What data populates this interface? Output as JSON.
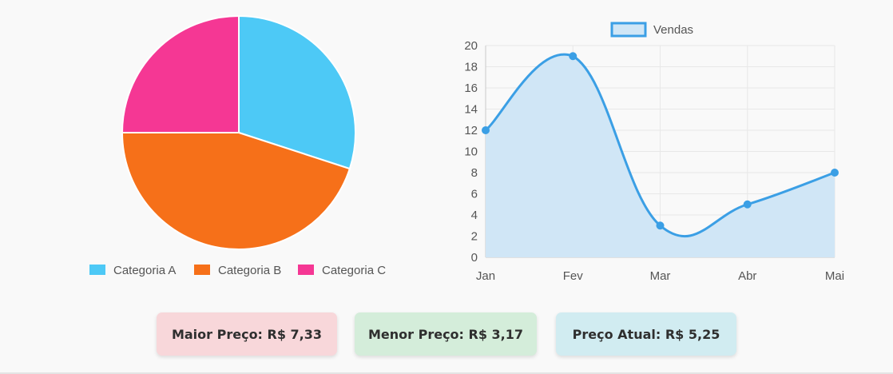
{
  "colors": {
    "category_a": "#4dc9f6",
    "category_b": "#f67019",
    "category_c": "#f53794",
    "line_stroke": "#3b9fe5",
    "line_fill": "#d0e6f6"
  },
  "chart_data": [
    {
      "type": "pie",
      "labels": [
        "Categoria A",
        "Categoria B",
        "Categoria C"
      ],
      "values": [
        30,
        45,
        25
      ],
      "legend_position": "bottom"
    },
    {
      "type": "area",
      "categories": [
        "Jan",
        "Fev",
        "Mar",
        "Abr",
        "Mai"
      ],
      "series": [
        {
          "name": "Vendas",
          "values": [
            12,
            19,
            3,
            5,
            8
          ]
        }
      ],
      "ylim": [
        0,
        20
      ],
      "yticks": [
        0,
        2,
        4,
        6,
        8,
        10,
        12,
        14,
        16,
        18,
        20
      ],
      "grid": true,
      "legend_position": "top",
      "curve": "smooth"
    }
  ],
  "price_cards": {
    "max_label": "Maior Preço: R$ 7,33",
    "min_label": "Menor Preço: R$ 3,17",
    "current_label": "Preço Atual: R$ 5,25"
  }
}
